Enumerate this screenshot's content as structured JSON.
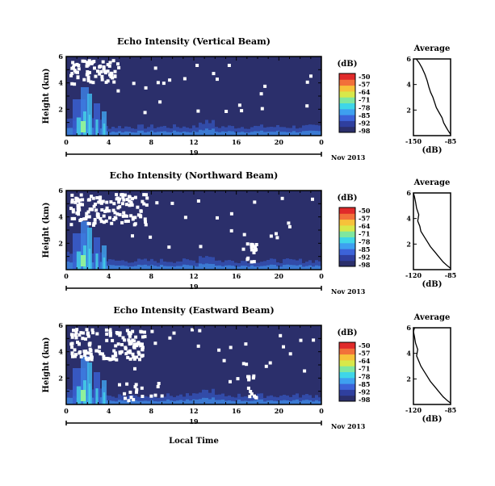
{
  "colorbar": {
    "unit_label": "(dB)",
    "ticks": [
      "-50",
      "-57",
      "-64",
      "-71",
      "-78",
      "-85",
      "-92",
      "-98"
    ],
    "colors": [
      "#2b2f6b",
      "#2f3f9e",
      "#3c63d8",
      "#3ea0f0",
      "#3fd6e8",
      "#7fe7a0",
      "#d8e84a",
      "#f7c23a",
      "#f2703a",
      "#e02a2a"
    ]
  },
  "panels": [
    {
      "title": "Echo Intensity (Vertical Beam)",
      "ylabel": "Height (km)",
      "yticks": [
        "6",
        "4",
        "2"
      ],
      "xticks": [
        "0",
        "4",
        "8",
        "12",
        "16",
        "20",
        "0"
      ],
      "day": "19",
      "date": "Nov 2013",
      "avg": {
        "title": "Average",
        "xlabel": "(dB)",
        "xticks": [
          "-150",
          "-85"
        ],
        "yticks": [
          "6",
          "4",
          "2"
        ]
      }
    },
    {
      "title": "Echo Intensity (Northward Beam)",
      "ylabel": "Height (km)",
      "yticks": [
        "6",
        "4",
        "2"
      ],
      "xticks": [
        "0",
        "4",
        "8",
        "12",
        "16",
        "20",
        "0"
      ],
      "day": "19",
      "date": "Nov 2013",
      "avg": {
        "title": "Average",
        "xlabel": "(dB)",
        "xticks": [
          "-120",
          "-85"
        ],
        "yticks": [
          "6",
          "4",
          "2"
        ]
      }
    },
    {
      "title": "Echo Intensity (Eastward Beam)",
      "ylabel": "Height (km)",
      "yticks": [
        "6",
        "4",
        "2"
      ],
      "xticks": [
        "0",
        "4",
        "8",
        "12",
        "16",
        "20",
        "0"
      ],
      "day": "19",
      "date": "Nov 2013",
      "avg": {
        "title": "Average",
        "xlabel": "(dB)",
        "xticks": [
          "-120",
          "-85"
        ],
        "yticks": [
          "6",
          "4",
          "2"
        ]
      }
    }
  ],
  "xlabel": "Local Time",
  "chart_data": {
    "type": "heatmap",
    "x_range_hours": [
      0,
      24
    ],
    "y_range_km": [
      0,
      6
    ],
    "colorbar_range_db": [
      -98,
      -50
    ],
    "average_profiles": [
      {
        "beam": "Vertical",
        "x_db": [
          -85,
          -88,
          -92,
          -97,
          -100,
          -105,
          -110,
          -113,
          -116,
          -120,
          -123,
          -126,
          -130,
          -135,
          -140,
          -145
        ],
        "height_km": [
          0.1,
          0.3,
          0.6,
          1.0,
          1.4,
          1.8,
          2.2,
          2.6,
          3.0,
          3.4,
          3.8,
          4.3,
          4.8,
          5.3,
          5.7,
          6.0
        ]
      },
      {
        "beam": "Northward",
        "x_db": [
          -85,
          -88,
          -92,
          -96,
          -100,
          -104,
          -107,
          -110,
          -113,
          -114,
          -116,
          -115,
          -117,
          -118,
          -119,
          -120
        ],
        "height_km": [
          0.1,
          0.3,
          0.6,
          1.0,
          1.4,
          1.8,
          2.2,
          2.6,
          3.0,
          3.4,
          3.8,
          4.3,
          4.8,
          5.3,
          5.7,
          6.0
        ]
      },
      {
        "beam": "Eastward",
        "x_db": [
          -85,
          -88,
          -92,
          -96,
          -100,
          -104,
          -107,
          -110,
          -113,
          -115,
          -117,
          -116,
          -118,
          -119,
          -120,
          -119
        ],
        "height_km": [
          0.1,
          0.3,
          0.6,
          1.0,
          1.4,
          1.8,
          2.2,
          2.6,
          3.0,
          3.4,
          3.8,
          4.3,
          4.8,
          5.3,
          5.7,
          6.0
        ]
      }
    ]
  }
}
